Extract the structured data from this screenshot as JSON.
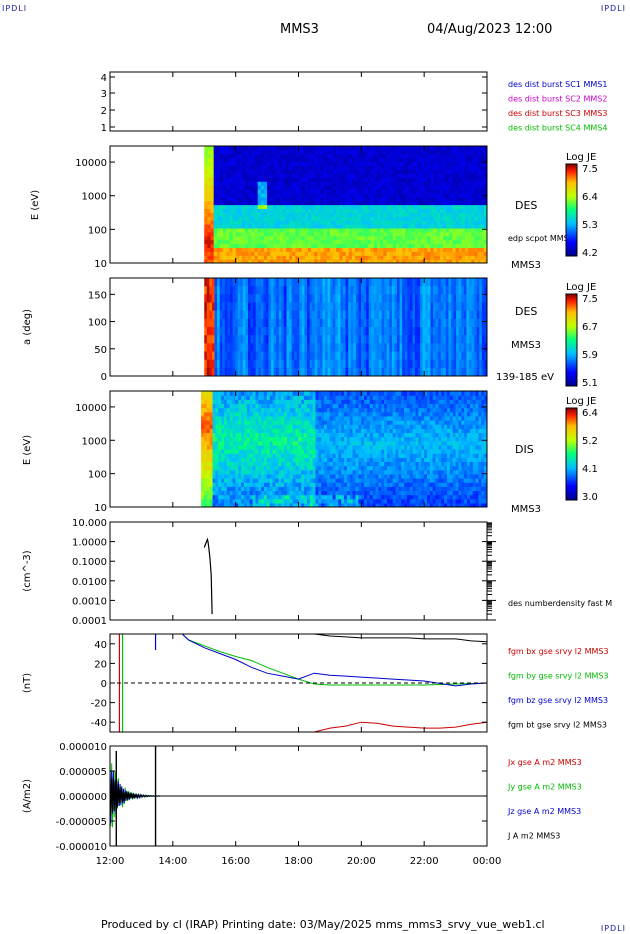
{
  "header": {
    "left_tag": "IPDLI",
    "right_tag": "IPDLI",
    "spacecraft": "MMS3",
    "datetime": "04/Aug/2023 12:00"
  },
  "footer": {
    "text": "Produced by cl (IRAP)   Printing date: 03/May/2025   mms_mms3_srvy_vue_web1.cl",
    "right_tag": "IPDLI"
  },
  "time_axis": {
    "ticks": [
      "12:00",
      "14:00",
      "16:00",
      "18:00",
      "20:00",
      "22:00",
      "00:00"
    ],
    "start_hour": 12,
    "end_hour": 24
  },
  "colors": {
    "mms1": "#0000cc",
    "mms2": "#cc00cc",
    "mms3": "#cc0000",
    "mms4": "#00bb00",
    "bx": "#cc0000",
    "by": "#00bb00",
    "bz": "#0000cc",
    "bt": "#000000"
  },
  "panels": {
    "burst": {
      "yticks": [
        "4",
        "3",
        "2",
        "1"
      ],
      "labels": [
        "des dist burst SC1 MMS1",
        "des dist burst SC2 MMS2",
        "des dist burst SC3 MMS3",
        "des dist burst SC4 MMS4"
      ]
    },
    "des_energy": {
      "ylabel": "E (eV)",
      "yticks": [
        "10000",
        "1000",
        "100",
        "10"
      ],
      "species": "DES",
      "spacecraft": "MMS3",
      "overlay_label": "edp scpot MMS3",
      "cbar_title": "Log JE",
      "cbar_ticks": [
        "7.5",
        "6.4",
        "5.3",
        "4.2"
      ]
    },
    "des_pitch": {
      "ylabel": "a (deg)",
      "yticks": [
        "150",
        "100",
        "50",
        "0"
      ],
      "species": "DES",
      "spacecraft": "MMS3",
      "energy_range": "139-185 eV",
      "cbar_title": "Log JE",
      "cbar_ticks": [
        "7.5",
        "6.7",
        "5.9",
        "5.1"
      ]
    },
    "dis_energy": {
      "ylabel": "E (eV)",
      "yticks": [
        "10000",
        "1000",
        "100",
        "10"
      ],
      "species": "DIS",
      "spacecraft": "MMS3",
      "cbar_title": "Log JE",
      "cbar_ticks": [
        "6.4",
        "5.2",
        "4.1",
        "3.0"
      ]
    },
    "density": {
      "ylabel": "(cm^-3)",
      "yticks": [
        "10.000",
        "1.0000",
        "0.1000",
        "0.0100",
        "0.0010",
        "0.0001"
      ],
      "label": "des numberdensity fast M"
    },
    "fgm": {
      "ylabel": "(nT)",
      "yticks": [
        "40",
        "20",
        "0",
        "-20",
        "-40"
      ],
      "labels": [
        "fgm bx gse srvy l2 MMS3",
        "fgm by gse srvy l2 MMS3",
        "fgm bz gse srvy l2 MMS3",
        "fgm bt gse srvy l2 MMS3"
      ]
    },
    "current": {
      "ylabel": "(A/m2)",
      "yticks": [
        "0.000010",
        "0.000005",
        "0.000000",
        "-0.000005",
        "-0.000010"
      ],
      "labels": [
        "Jx gse A m2 MMS3",
        "Jy gse A m2 MMS3",
        "Jz gse A m2 MMS3",
        "J A m2 MMS3"
      ]
    }
  },
  "chart_data": [
    {
      "type": "heatmap",
      "name": "des_energy",
      "x_range_hours": [
        12,
        24
      ],
      "yscale": "log",
      "ylim": [
        10,
        30000
      ],
      "data_start_hour": 15.0,
      "bands": [
        {
          "emin": 10,
          "emax": 30,
          "level": 6.9
        },
        {
          "emin": 30,
          "emax": 100,
          "level": 6.1
        },
        {
          "emin": 100,
          "emax": 500,
          "level": 5.5
        },
        {
          "emin": 500,
          "emax": 30000,
          "level": 4.5
        }
      ],
      "burst_hours": [
        15.0,
        15.3
      ],
      "crest_hours": [
        16.7,
        17.0
      ]
    },
    {
      "type": "heatmap",
      "name": "des_pitch",
      "x_range_hours": [
        12,
        24
      ],
      "ylim": [
        0,
        180
      ],
      "data_start_hour": 15.0,
      "burst_hours": [
        15.0,
        15.3
      ],
      "base_level": 5.75
    },
    {
      "type": "heatmap",
      "name": "dis_energy",
      "x_range_hours": [
        12,
        24
      ],
      "yscale": "log",
      "ylim": [
        10,
        30000
      ],
      "data_start_hour": 14.9,
      "burst_hours": [
        14.9,
        15.3
      ]
    },
    {
      "type": "line",
      "name": "density",
      "yscale": "log",
      "ylim": [
        0.0001,
        10
      ],
      "x": [
        15.0,
        15.05,
        15.1,
        15.12,
        15.15,
        15.18,
        15.2,
        15.22,
        15.25
      ],
      "y": [
        0.5,
        0.8,
        1.3,
        1.0,
        0.4,
        0.15,
        0.06,
        0.02,
        0.0002
      ]
    },
    {
      "type": "line",
      "name": "fgm",
      "ylim": [
        -50,
        50
      ],
      "series": [
        {
          "name": "fgm bx gse srvy l2 MMS3",
          "x": [
            18.5,
            19.0,
            19.5,
            20.0,
            20.5,
            21.0,
            21.5,
            22.0,
            22.5,
            23.0,
            23.5,
            24.0
          ],
          "y": [
            -50,
            -46,
            -44,
            -40,
            -41,
            -44,
            -45,
            -46,
            -46,
            -45,
            -42,
            -40
          ]
        },
        {
          "name": "fgm by gse srvy l2 MMS3",
          "x": [
            14.3,
            14.5,
            15.0,
            15.5,
            16.0,
            16.5,
            17.0,
            17.5,
            18.0,
            18.5,
            19.0,
            20.0,
            21.0,
            22.0,
            23.0,
            24.0
          ],
          "y": [
            50,
            44,
            38,
            32,
            27,
            23,
            16,
            10,
            4,
            -1,
            -2,
            -2,
            -2,
            -2,
            -1,
            0
          ]
        },
        {
          "name": "fgm bz gse srvy l2 MMS3",
          "x": [
            14.3,
            14.5,
            15.0,
            15.5,
            16.0,
            16.5,
            17.0,
            17.5,
            18.0,
            18.5,
            19.0,
            19.5,
            20.0,
            21.0,
            22.0,
            23.0,
            23.5,
            24.0
          ],
          "y": [
            50,
            44,
            36,
            30,
            24,
            16,
            10,
            7,
            4,
            10,
            8,
            7,
            6,
            4,
            2,
            -3,
            -1,
            0
          ]
        },
        {
          "name": "fgm bt gse srvy l2 MMS3",
          "x": [
            18.5,
            19.0,
            19.5,
            20.0,
            20.5,
            21.0,
            21.5,
            22.0,
            22.5,
            23.0,
            23.5,
            24.0
          ],
          "y": [
            50,
            48,
            47,
            46,
            46,
            46,
            46,
            45,
            45,
            45,
            43,
            42
          ]
        }
      ],
      "vlines": [
        {
          "x": 12.3,
          "color": "red"
        },
        {
          "x": 12.4,
          "color": "green"
        },
        {
          "x": 13.45,
          "color": "blue"
        }
      ]
    },
    {
      "type": "line",
      "name": "current",
      "ylim": [
        -1e-05,
        1e-05
      ],
      "spikes": [
        {
          "x": 12.2,
          "max": 9e-06,
          "min": -1e-05
        },
        {
          "x": 13.45,
          "max": 1e-05,
          "min": -1e-05
        }
      ],
      "decay_end_hour": 13.6
    }
  ]
}
